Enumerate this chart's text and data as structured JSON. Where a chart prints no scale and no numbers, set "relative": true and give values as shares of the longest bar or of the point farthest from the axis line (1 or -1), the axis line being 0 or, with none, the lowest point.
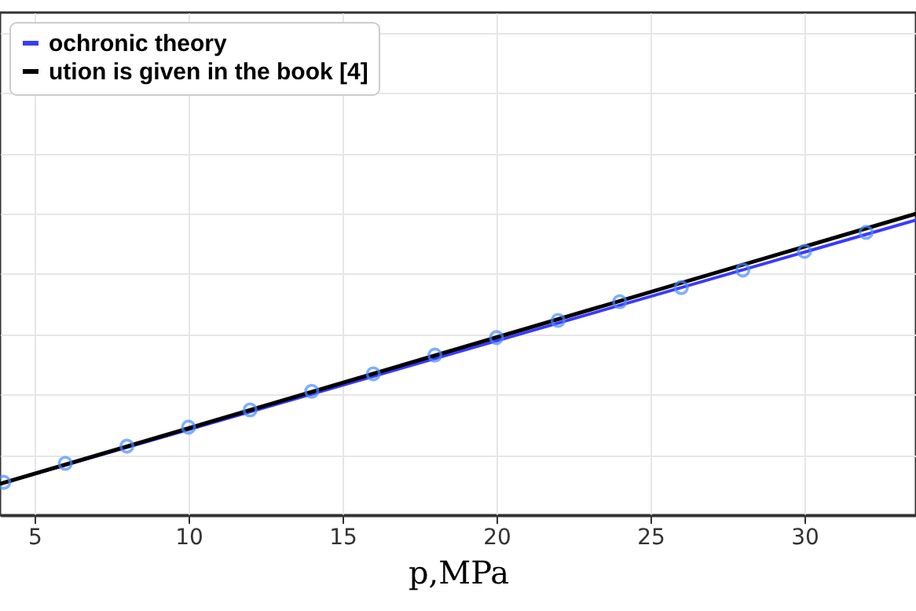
{
  "chart_data": {
    "type": "line",
    "xlabel": "p,MPa",
    "relative": true,
    "xlim": [
      3.88,
      33.62
    ],
    "xticks": [
      5,
      10,
      15,
      20,
      25,
      30
    ],
    "grid": true,
    "legend": "top left",
    "series": [
      {
        "name": "ochronic theory",
        "color": "#3a3aff",
        "x": [
          3.88,
          33.62
        ],
        "values": [
          0.104,
          0.979
        ]
      },
      {
        "type": "scatter",
        "marker": "circle",
        "color": "#4a8cff",
        "x": [
          4,
          6,
          8,
          10,
          12,
          14,
          16,
          18,
          20,
          22,
          24,
          26,
          28,
          30,
          32
        ],
        "values": [
          0.109,
          0.172,
          0.229,
          0.292,
          0.349,
          0.411,
          0.469,
          0.531,
          0.589,
          0.646,
          0.708,
          0.755,
          0.813,
          0.875,
          0.938
        ]
      },
      {
        "name": "ution is given in the book [4]",
        "color": "#000000",
        "x": [
          3.88,
          33.62
        ],
        "values": [
          0.104,
          1
        ]
      }
    ]
  }
}
